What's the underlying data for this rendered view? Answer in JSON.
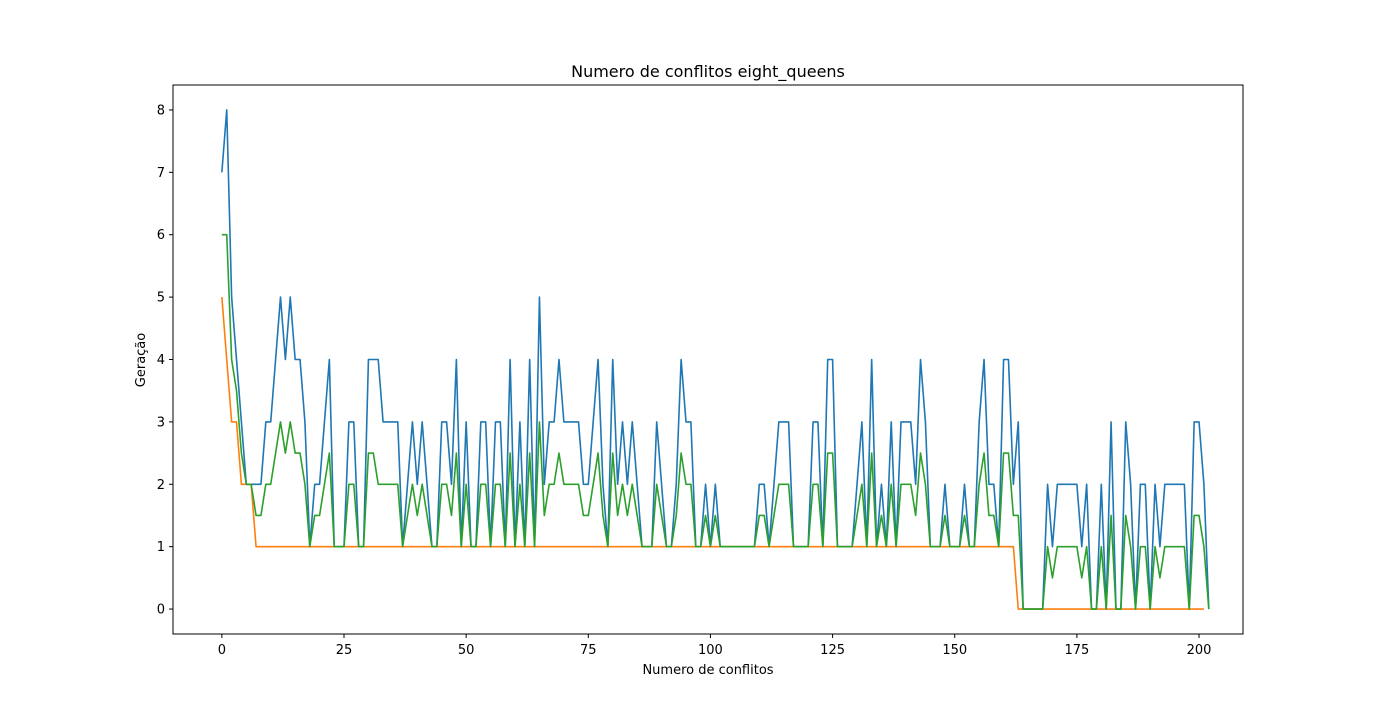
{
  "chart_data": {
    "type": "line",
    "title": "Numero de conflitos eight_queens",
    "xlabel": "Numero de conflitos",
    "ylabel": "Geração",
    "xlim": [
      -10,
      209
    ],
    "ylim": [
      -0.4,
      8.4
    ],
    "xticks": [
      0,
      25,
      50,
      75,
      100,
      125,
      150,
      175,
      200
    ],
    "yticks": [
      0,
      1,
      2,
      3,
      4,
      5,
      6,
      7,
      8
    ],
    "grid": false,
    "legend": "none",
    "series": [
      {
        "color": "#1f77b4",
        "values": [
          7,
          8,
          5,
          4,
          3,
          2,
          2,
          2,
          2,
          3,
          3,
          4,
          5,
          4,
          5,
          4,
          4,
          3,
          1,
          2,
          2,
          3,
          4,
          1,
          1,
          1,
          3,
          3,
          1,
          1,
          4,
          4,
          4,
          3,
          3,
          3,
          3,
          1,
          2,
          3,
          2,
          3,
          2,
          1,
          1,
          3,
          3,
          2,
          4,
          1,
          3,
          1,
          1,
          3,
          3,
          1,
          3,
          3,
          1,
          4,
          1,
          3,
          1,
          4,
          1,
          5,
          2,
          3,
          3,
          4,
          3,
          3,
          3,
          3,
          2,
          2,
          3,
          4,
          2,
          1,
          4,
          2,
          3,
          2,
          3,
          2,
          1,
          1,
          1,
          3,
          2,
          1,
          1,
          2,
          4,
          3,
          3,
          1,
          1,
          2,
          1,
          2,
          1,
          1,
          1,
          1,
          1,
          1,
          1,
          1,
          2,
          2,
          1,
          2,
          3,
          3,
          3,
          1,
          1,
          1,
          1,
          3,
          3,
          1,
          4,
          4,
          1,
          1,
          1,
          1,
          2,
          3,
          1,
          4,
          1,
          2,
          1,
          3,
          1,
          3,
          3,
          3,
          2,
          4,
          3,
          1,
          1,
          1,
          2,
          1,
          1,
          1,
          2,
          1,
          1,
          3,
          4,
          2,
          2,
          1,
          4,
          4,
          2,
          3,
          0,
          0,
          0,
          0,
          0,
          2,
          1,
          2,
          2,
          2,
          2,
          2,
          1,
          2,
          0,
          0,
          2,
          0,
          3,
          0,
          0,
          3,
          2,
          0,
          2,
          2,
          0,
          2,
          1,
          2,
          2,
          2,
          2,
          2,
          0,
          3,
          3,
          2,
          0
        ]
      },
      {
        "color": "#ff7f0e",
        "values": [
          5,
          4,
          3,
          3,
          2,
          2,
          2,
          1,
          1,
          1,
          1,
          1,
          1,
          1,
          1,
          1,
          1,
          1,
          1,
          1,
          1,
          1,
          1,
          1,
          1,
          1,
          1,
          1,
          1,
          1,
          1,
          1,
          1,
          1,
          1,
          1,
          1,
          1,
          1,
          1,
          1,
          1,
          1,
          1,
          1,
          1,
          1,
          1,
          1,
          1,
          1,
          1,
          1,
          1,
          1,
          1,
          1,
          1,
          1,
          1,
          1,
          1,
          1,
          1,
          1,
          1,
          1,
          1,
          1,
          1,
          1,
          1,
          1,
          1,
          1,
          1,
          1,
          1,
          1,
          1,
          1,
          1,
          1,
          1,
          1,
          1,
          1,
          1,
          1,
          1,
          1,
          1,
          1,
          1,
          1,
          1,
          1,
          1,
          1,
          1,
          1,
          1,
          1,
          1,
          1,
          1,
          1,
          1,
          1,
          1,
          1,
          1,
          1,
          1,
          1,
          1,
          1,
          1,
          1,
          1,
          1,
          1,
          1,
          1,
          1,
          1,
          1,
          1,
          1,
          1,
          1,
          1,
          1,
          1,
          1,
          1,
          1,
          1,
          1,
          1,
          1,
          1,
          1,
          1,
          1,
          1,
          1,
          1,
          1,
          1,
          1,
          1,
          1,
          1,
          1,
          1,
          1,
          1,
          1,
          1,
          1,
          1,
          1,
          0,
          0,
          0,
          0,
          0,
          0,
          0,
          0,
          0,
          0,
          0,
          0,
          0,
          0,
          0,
          0,
          0,
          0,
          0,
          0,
          0,
          0,
          0,
          0,
          0,
          0,
          0,
          0,
          0,
          0,
          0,
          0,
          0,
          0,
          0,
          0,
          0,
          0,
          0
        ]
      },
      {
        "color": "#2ca02c",
        "values": [
          6,
          6,
          4,
          3.5,
          2.5,
          2,
          2,
          1.5,
          1.5,
          2,
          2,
          2.5,
          3,
          2.5,
          3,
          2.5,
          2.5,
          2,
          1,
          1.5,
          1.5,
          2,
          2.5,
          1,
          1,
          1,
          2,
          2,
          1,
          1,
          2.5,
          2.5,
          2,
          2,
          2,
          2,
          2,
          1,
          1.5,
          2,
          1.5,
          2,
          1.5,
          1,
          1,
          2,
          2,
          1.5,
          2.5,
          1,
          2,
          1,
          1,
          2,
          2,
          1,
          2,
          2,
          1,
          2.5,
          1,
          2,
          1,
          2.5,
          1,
          3,
          1.5,
          2,
          2,
          2.5,
          2,
          2,
          2,
          2,
          1.5,
          1.5,
          2,
          2.5,
          1.5,
          1,
          2.5,
          1.5,
          2,
          1.5,
          2,
          1.5,
          1,
          1,
          1,
          2,
          1.5,
          1,
          1,
          1.5,
          2.5,
          2,
          2,
          1,
          1,
          1.5,
          1,
          1.5,
          1,
          1,
          1,
          1,
          1,
          1,
          1,
          1,
          1.5,
          1.5,
          1,
          1.5,
          2,
          2,
          2,
          1,
          1,
          1,
          1,
          2,
          2,
          1,
          2.5,
          2.5,
          1,
          1,
          1,
          1,
          1.5,
          2,
          1,
          2.5,
          1,
          1.5,
          1,
          2,
          1,
          2,
          2,
          2,
          1.5,
          2.5,
          2,
          1,
          1,
          1,
          1.5,
          1,
          1,
          1,
          1.5,
          1,
          1,
          2,
          2.5,
          1.5,
          1.5,
          1,
          2.5,
          2.5,
          1.5,
          1.5,
          0,
          0,
          0,
          0,
          0,
          1,
          0.5,
          1,
          1,
          1,
          1,
          1,
          0.5,
          1,
          0,
          0,
          1,
          0,
          1.5,
          0,
          0,
          1.5,
          1,
          0,
          1,
          1,
          0,
          1,
          0.5,
          1,
          1,
          1,
          1,
          1,
          0,
          1.5,
          1.5,
          1,
          0
        ]
      }
    ]
  }
}
